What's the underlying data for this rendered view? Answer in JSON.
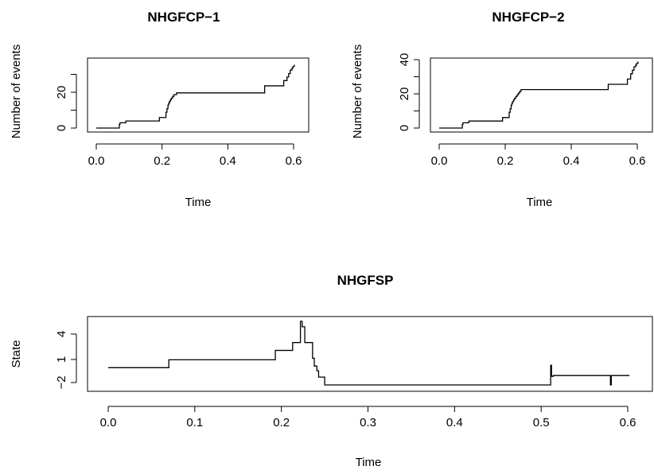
{
  "chart_data": [
    {
      "type": "line",
      "title": "NHGFCP−1",
      "xlabel": "Time",
      "ylabel": "Number of events",
      "xlim": [
        0,
        0.6
      ],
      "ylim": [
        0,
        38
      ],
      "xticks": [
        "0.0",
        "0.2",
        "0.4",
        "0.6"
      ],
      "yticks": [
        "0",
        "20"
      ],
      "yticks_extra": [
        10,
        30
      ],
      "series": [
        {
          "step": true,
          "x": [
            0.0,
            0.07,
            0.072,
            0.09,
            0.192,
            0.212,
            0.215,
            0.218,
            0.22,
            0.222,
            0.225,
            0.228,
            0.232,
            0.236,
            0.24,
            0.244,
            0.248,
            0.512,
            0.57,
            0.58,
            0.585,
            0.59,
            0.595,
            0.598,
            0.602
          ],
          "y": [
            0,
            2,
            3,
            4,
            6,
            9,
            11,
            13,
            14,
            15,
            16,
            17,
            18,
            19,
            19,
            20,
            20,
            24,
            27,
            29,
            31,
            33,
            34,
            35,
            36
          ]
        }
      ]
    },
    {
      "type": "line",
      "title": "NHGFCP−2",
      "xlabel": "Time",
      "ylabel": "Number of events",
      "xlim": [
        0,
        0.6
      ],
      "ylim": [
        0,
        40
      ],
      "xticks": [
        "0.0",
        "0.2",
        "0.4",
        "0.6"
      ],
      "yticks": [
        "0",
        "20",
        "40"
      ],
      "yticks_extra": [
        10,
        30
      ],
      "series": [
        {
          "step": true,
          "x": [
            0.0,
            0.07,
            0.072,
            0.09,
            0.192,
            0.212,
            0.215,
            0.218,
            0.22,
            0.222,
            0.225,
            0.228,
            0.232,
            0.236,
            0.24,
            0.244,
            0.248,
            0.512,
            0.57,
            0.58,
            0.585,
            0.59,
            0.595,
            0.598,
            0.602
          ],
          "y": [
            0,
            2,
            3,
            4,
            6,
            9,
            11,
            13,
            14,
            15,
            16,
            17,
            18,
            19,
            20,
            21,
            22,
            25,
            28,
            31,
            33,
            35,
            36,
            37,
            38
          ]
        }
      ]
    },
    {
      "type": "line",
      "title": "NHGFSP",
      "xlabel": "Time",
      "ylabel": "State",
      "xlim": [
        0,
        0.6
      ],
      "ylim": [
        -2.5,
        6
      ],
      "xticks": [
        "0.0",
        "0.1",
        "0.2",
        "0.3",
        "0.4",
        "0.5",
        "0.6"
      ],
      "yticks": [
        "−2",
        "1",
        "4"
      ],
      "series": [
        {
          "step": true,
          "x": [
            0.0,
            0.07,
            0.193,
            0.213,
            0.222,
            0.224,
            0.227,
            0.236,
            0.238,
            0.241,
            0.243,
            0.25,
            0.511,
            0.512,
            0.514,
            0.58,
            0.581,
            0.583,
            0.602
          ],
          "y": [
            0,
            1,
            2.2,
            3.2,
            5.9,
            5.2,
            3.2,
            1.2,
            0.2,
            -0.4,
            -1.2,
            -2.2,
            0.3,
            -1.1,
            -1.0,
            -2.2,
            -1.0,
            -1.0,
            -1.0
          ]
        }
      ]
    }
  ]
}
